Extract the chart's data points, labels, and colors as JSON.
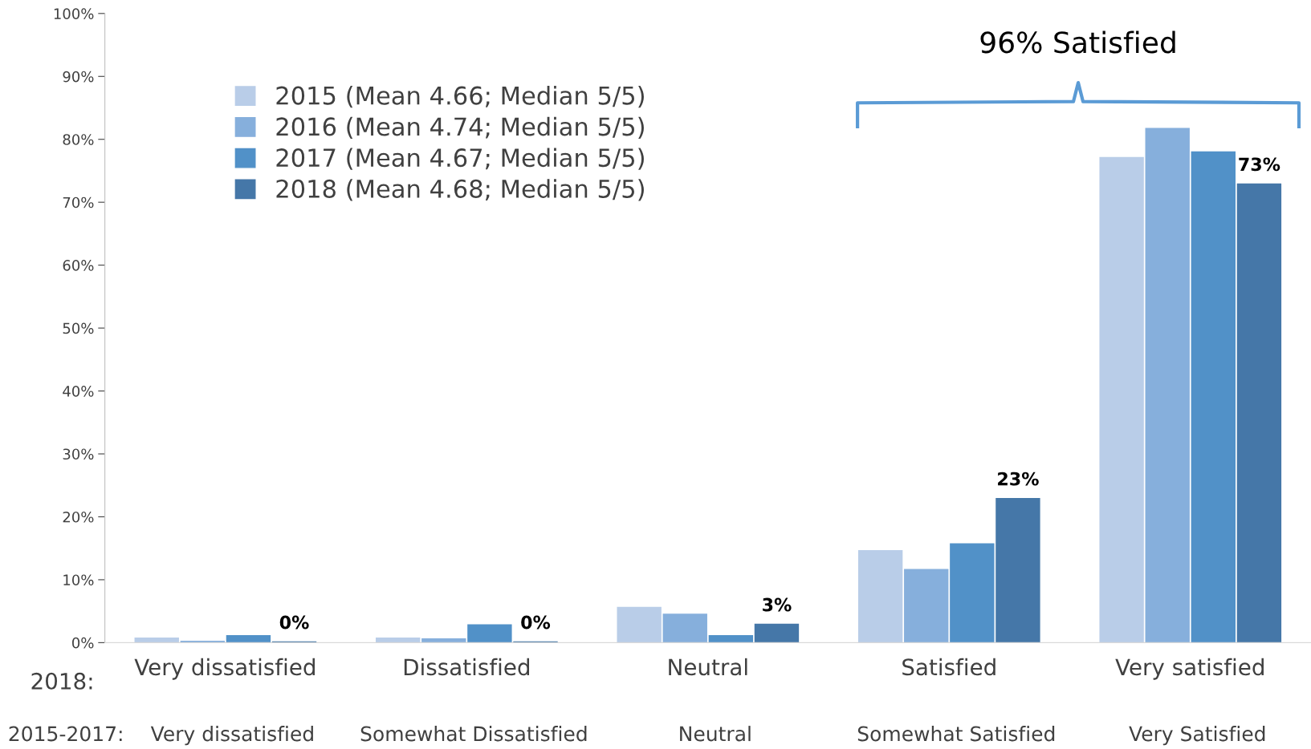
{
  "chart_data": {
    "type": "bar",
    "categories": [
      "Very dissatisfied",
      "Dissatisfied",
      "Neutral",
      "Satisfied",
      "Very satisfied"
    ],
    "series": [
      {
        "name": "2015 (Mean 4.66; Median 5/5)",
        "color": "#b9cde8",
        "values": [
          0.8,
          0.8,
          5.7,
          14.7,
          77.2
        ]
      },
      {
        "name": "2016 (Mean 4.74; Median 5/5)",
        "color": "#86afdc",
        "values": [
          0.3,
          0.7,
          4.6,
          11.7,
          81.8
        ]
      },
      {
        "name": "2017 (Mean 4.67; Median 5/5)",
        "color": "#5191c8",
        "values": [
          1.2,
          2.9,
          1.2,
          15.8,
          78.1
        ]
      },
      {
        "name": "2018 (Mean 4.68; Median 5/5)",
        "color": "#4577a8",
        "values": [
          0.2,
          0.2,
          3.0,
          23.0,
          73.0
        ],
        "value_labels": [
          "0%",
          "0%",
          "3%",
          "23%",
          "73%"
        ]
      }
    ],
    "ylim": [
      0,
      100
    ],
    "yticks": [
      {
        "value": 0,
        "label": "0%"
      },
      {
        "value": 10,
        "label": "10%"
      },
      {
        "value": 20,
        "label": "20%"
      },
      {
        "value": 30,
        "label": "30%"
      },
      {
        "value": 40,
        "label": "40%"
      },
      {
        "value": 50,
        "label": "50%"
      },
      {
        "value": 60,
        "label": "60%"
      },
      {
        "value": 70,
        "label": "70%"
      },
      {
        "value": 80,
        "label": "80%"
      },
      {
        "value": 90,
        "label": "90%"
      },
      {
        "value": 100,
        "label": "100%"
      }
    ],
    "grid": false,
    "legend": "top left",
    "annotations": [
      "96% Satisfied",
      "2018:",
      "2015-2017:",
      "Very dissatisfied",
      "Somewhat Dissatisfied",
      "Neutral",
      "Somewhat Satisfied",
      "Very Satisfied"
    ]
  }
}
